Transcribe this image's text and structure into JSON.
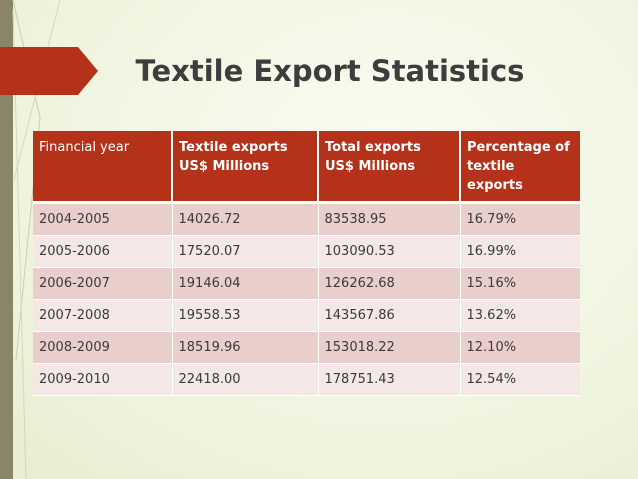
{
  "slide": {
    "title": "Textile Export Statistics"
  },
  "colors": {
    "header_bg": "#b5321a",
    "row_odd": "#e8cfcc",
    "row_even": "#f4e8e7",
    "title_text": "#3d3d3d",
    "flag": "#b5321a",
    "background": "#f3f7e6"
  },
  "table": {
    "headers": [
      "Financial year",
      "Textile exports US$ Millions",
      "Total exports US$ Millions",
      "Percentage of textile exports"
    ],
    "rows": [
      [
        "2004-2005",
        "14026.72",
        "83538.95",
        "16.79%"
      ],
      [
        "2005-2006",
        "17520.07",
        "103090.53",
        "16.99%"
      ],
      [
        "2006-2007",
        "19146.04",
        "126262.68",
        "15.16%"
      ],
      [
        "2007-2008",
        "19558.53",
        "143567.86",
        "13.62%"
      ],
      [
        "2008-2009",
        "18519.96",
        "153018.22",
        "12.10%"
      ],
      [
        "2009-2010",
        "22418.00",
        "178751.43",
        "12.54%"
      ]
    ]
  }
}
